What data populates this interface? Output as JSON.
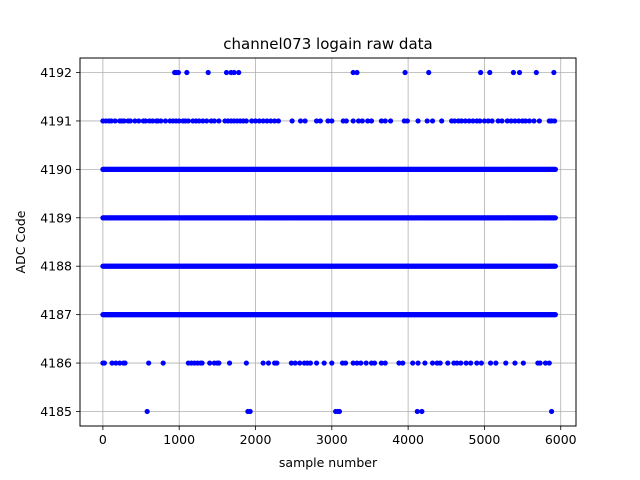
{
  "chart_data": {
    "type": "scatter",
    "title": "channel073 logain raw data",
    "xlabel": "sample number",
    "ylabel": "ADC Code",
    "xlim": [
      -300,
      6200
    ],
    "ylim": [
      4184.7,
      4192.3
    ],
    "xticks": [
      0,
      1000,
      2000,
      3000,
      4000,
      5000,
      6000
    ],
    "yticks": [
      4185,
      4186,
      4187,
      4188,
      4189,
      4190,
      4191,
      4192
    ],
    "grid": true,
    "point_color": "#0000ff",
    "x_max": 5930,
    "levels": [
      {
        "y": 4192,
        "x": [
          940,
          960,
          990,
          1100,
          1380,
          1620,
          1680,
          1720,
          1780,
          3280,
          3330,
          3960,
          4270,
          4950,
          5070,
          5380,
          5460,
          5680,
          5910
        ]
      },
      {
        "y": 4191,
        "x": [
          0,
          40,
          80,
          110,
          160,
          220,
          250,
          280,
          330,
          360,
          420,
          470,
          530,
          560,
          610,
          650,
          700,
          720,
          760,
          820,
          880,
          920,
          960,
          1000,
          1050,
          1080,
          1120,
          1180,
          1220,
          1260,
          1310,
          1360,
          1420,
          1460,
          1520,
          1600,
          1640,
          1680,
          1720,
          1760,
          1800,
          1840,
          1880,
          1950,
          2000,
          2050,
          2100,
          2150,
          2200,
          2250,
          2300,
          2480,
          2590,
          2650,
          2800,
          2850,
          2950,
          3000,
          3150,
          3190,
          3280,
          3350,
          3400,
          3470,
          3520,
          3650,
          3700,
          3770,
          3950,
          3990,
          4130,
          4250,
          4320,
          4440,
          4570,
          4610,
          4660,
          4700,
          4750,
          4800,
          4850,
          4900,
          4940,
          5000,
          5050,
          5100,
          5180,
          5230,
          5300,
          5350,
          5400,
          5450,
          5500,
          5540,
          5590,
          5650,
          5720,
          5850,
          5880,
          5920
        ]
      },
      {
        "y": 4190,
        "continuous": [
          0,
          5930
        ]
      },
      {
        "y": 4189,
        "continuous": [
          0,
          5930
        ]
      },
      {
        "y": 4188,
        "continuous": [
          0,
          5930
        ]
      },
      {
        "y": 4187,
        "continuous": [
          0,
          5930
        ]
      },
      {
        "y": 4186,
        "x": [
          0,
          20,
          120,
          170,
          220,
          270,
          290,
          600,
          790,
          1120,
          1160,
          1200,
          1240,
          1280,
          1300,
          1400,
          1460,
          1500,
          1520,
          1660,
          1880,
          2100,
          2170,
          2250,
          2280,
          2470,
          2520,
          2580,
          2640,
          2680,
          2720,
          2800,
          2900,
          3000,
          3140,
          3180,
          3280,
          3330,
          3380,
          3450,
          3520,
          3560,
          3650,
          3700,
          3880,
          3930,
          4060,
          4130,
          4220,
          4320,
          4380,
          4420,
          4520,
          4600,
          4640,
          4690,
          4760,
          4820,
          4900,
          4960,
          5080,
          5150,
          5280,
          5400,
          5510,
          5700,
          5730,
          5800,
          5850
        ]
      },
      {
        "y": 4185,
        "x": [
          580,
          1900,
          1930,
          3050,
          3080,
          3100,
          4120,
          4180,
          5880
        ]
      }
    ]
  }
}
